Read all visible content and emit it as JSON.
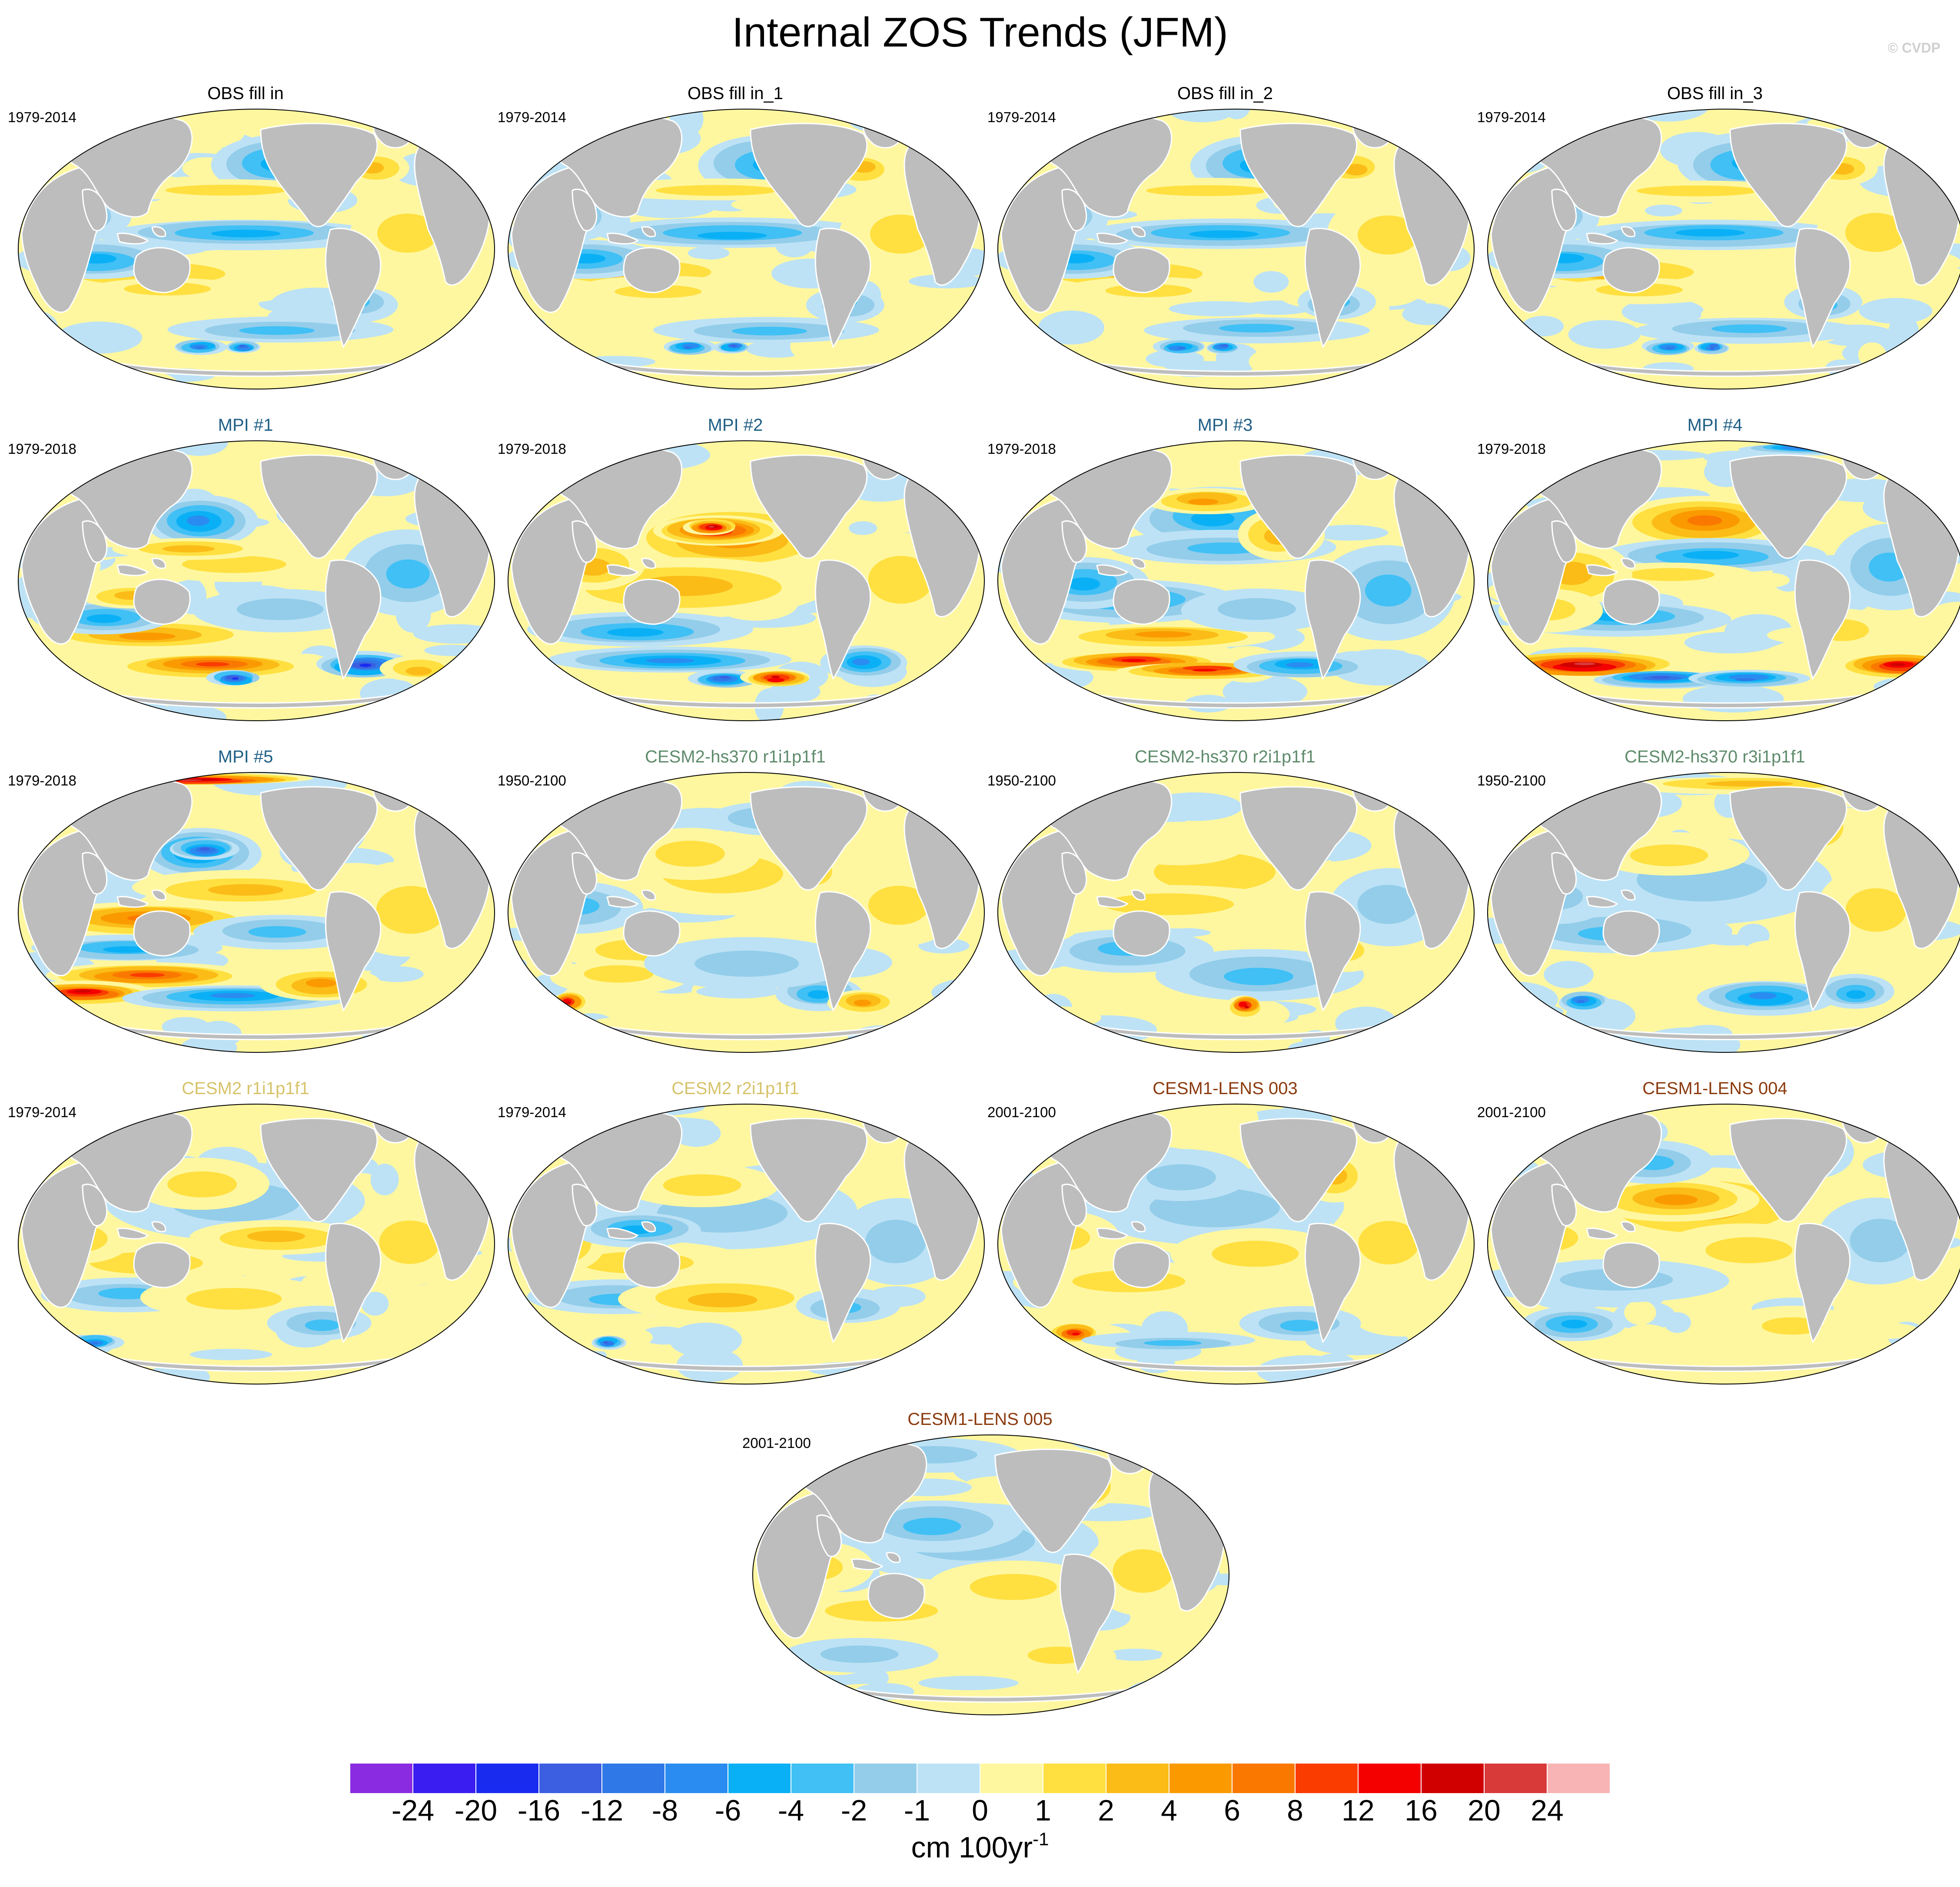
{
  "title": "Internal ZOS Trends (JFM)",
  "watermark": "© CVDP",
  "panels": [
    {
      "title": "OBS fill in",
      "period": "1979-2014",
      "color": "#000000",
      "pattern": "obs"
    },
    {
      "title": "OBS fill in_1",
      "period": "1979-2014",
      "color": "#000000",
      "pattern": "obs"
    },
    {
      "title": "OBS fill in_2",
      "period": "1979-2014",
      "color": "#000000",
      "pattern": "obs"
    },
    {
      "title": "OBS fill in_3",
      "period": "1979-2014",
      "color": "#000000",
      "pattern": "obs"
    },
    {
      "title": "MPI #1",
      "period": "1979-2018",
      "color": "#1f5f86",
      "pattern": "mpi1"
    },
    {
      "title": "MPI #2",
      "period": "1979-2018",
      "color": "#1f5f86",
      "pattern": "mpi2"
    },
    {
      "title": "MPI #3",
      "period": "1979-2018",
      "color": "#1f5f86",
      "pattern": "mpi3"
    },
    {
      "title": "MPI #4",
      "period": "1979-2018",
      "color": "#1f5f86",
      "pattern": "mpi4"
    },
    {
      "title": "MPI #5",
      "period": "1979-2018",
      "color": "#1f5f86",
      "pattern": "mpi5"
    },
    {
      "title": "CESM2-hs370 r1i1p1f1",
      "period": "1950-2100",
      "color": "#5e8b6b",
      "pattern": "hs1"
    },
    {
      "title": "CESM2-hs370 r2i1p1f1",
      "period": "1950-2100",
      "color": "#5e8b6b",
      "pattern": "hs2"
    },
    {
      "title": "CESM2-hs370 r3i1p1f1",
      "period": "1950-2100",
      "color": "#5e8b6b",
      "pattern": "hs3"
    },
    {
      "title": "CESM2 r1i1p1f1",
      "period": "1979-2014",
      "color": "#d6c36a",
      "pattern": "c1"
    },
    {
      "title": "CESM2 r2i1p1f1",
      "period": "1979-2014",
      "color": "#d6c36a",
      "pattern": "c2"
    },
    {
      "title": "CESM1-LENS 003",
      "period": "2001-2100",
      "color": "#8b3a0e",
      "pattern": "l3"
    },
    {
      "title": "CESM1-LENS 004",
      "period": "2001-2100",
      "color": "#8b3a0e",
      "pattern": "l4"
    },
    {
      "title": "CESM1-LENS 005",
      "period": "2001-2100",
      "color": "#8b3a0e",
      "pattern": "l5"
    }
  ],
  "colorbar": {
    "colors": [
      "#8a2be2",
      "#3a1df0",
      "#1a2bf0",
      "#3b5fe0",
      "#2f78e8",
      "#2a8cf0",
      "#0ab0f5",
      "#40c0f5",
      "#93cdea",
      "#bde2f5",
      "#fff7a0",
      "#ffe040",
      "#fbbc18",
      "#fb9a00",
      "#fa7800",
      "#fa3c00",
      "#f50000",
      "#d00000",
      "#d83a3a",
      "#f8b4b4"
    ],
    "labels": [
      "-24",
      "-20",
      "-16",
      "-12",
      "-8",
      "-6",
      "-4",
      "-2",
      "-1",
      "0",
      "1",
      "2",
      "4",
      "6",
      "8",
      "12",
      "16",
      "20",
      "24"
    ],
    "units": "cm 100yr",
    "units_exponent": "-1"
  }
}
